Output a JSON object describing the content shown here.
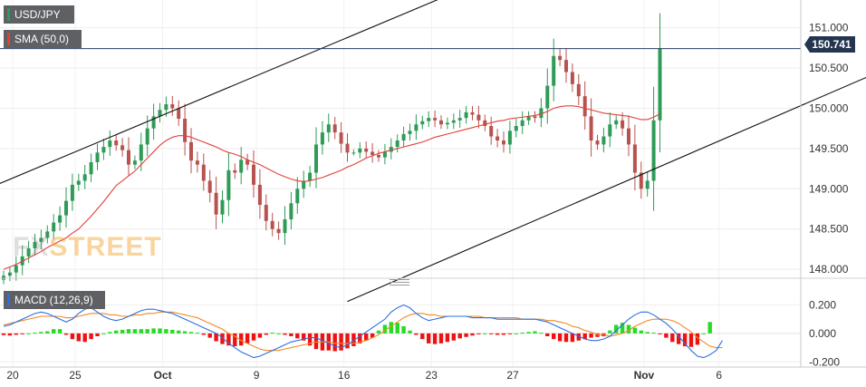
{
  "chart_data": [
    {
      "type": "candlestick",
      "symbol": "USD/JPY",
      "indicator": "SMA (50,0)",
      "current_price": "150.741",
      "current_price_value": 150.741,
      "y_ticks": [
        "151.000",
        "150.500",
        "150.000",
        "149.500",
        "149.000",
        "148.500",
        "148.000"
      ],
      "y_tick_values": [
        151.0,
        150.5,
        150.0,
        149.5,
        149.0,
        148.5,
        148.0
      ],
      "ylim": [
        147.9,
        151.3
      ],
      "x_ticks": [
        "20",
        "25",
        "Oct",
        "9",
        "16",
        "23",
        "27",
        "Nov",
        "6"
      ],
      "x_tick_index": [
        0,
        10,
        24,
        39,
        53,
        67,
        80,
        101,
        113
      ],
      "grid": true,
      "closes": [
        147.92,
        147.96,
        148.05,
        148.16,
        148.26,
        148.34,
        148.39,
        148.47,
        148.58,
        148.67,
        148.85,
        149.05,
        149.1,
        149.18,
        149.33,
        149.45,
        149.52,
        149.6,
        149.54,
        149.48,
        149.3,
        149.35,
        149.55,
        149.75,
        149.9,
        149.98,
        150.05,
        150.0,
        149.87,
        149.58,
        149.35,
        149.3,
        149.1,
        148.95,
        148.68,
        148.86,
        149.23,
        149.2,
        149.36,
        149.3,
        149.05,
        148.8,
        148.6,
        148.5,
        148.45,
        148.62,
        148.82,
        149.0,
        149.1,
        149.2,
        149.55,
        149.7,
        149.8,
        149.7,
        149.56,
        149.45,
        149.45,
        149.5,
        149.46,
        149.42,
        149.39,
        149.46,
        149.52,
        149.6,
        149.68,
        149.72,
        149.8,
        149.84,
        149.88,
        149.85,
        149.8,
        149.82,
        149.85,
        149.88,
        149.95,
        149.92,
        149.85,
        149.78,
        149.65,
        149.6,
        149.55,
        149.72,
        149.78,
        149.85,
        149.9,
        149.88,
        150.0,
        150.28,
        150.65,
        150.6,
        150.45,
        150.3,
        150.15,
        149.9,
        149.6,
        149.55,
        149.65,
        149.8,
        149.85,
        149.75,
        149.55,
        149.2,
        149.0,
        149.1,
        149.85,
        150.741
      ],
      "sma": [
        148.0,
        148.03,
        148.06,
        148.1,
        148.14,
        148.18,
        148.22,
        148.27,
        148.31,
        148.35,
        148.39,
        148.45,
        148.5,
        148.58,
        148.66,
        148.75,
        148.84,
        148.94,
        149.04,
        149.1,
        149.16,
        149.22,
        149.3,
        149.38,
        149.46,
        149.54,
        149.6,
        149.64,
        149.66,
        149.66,
        149.64,
        149.61,
        149.58,
        149.55,
        149.52,
        149.48,
        149.45,
        149.43,
        149.4,
        149.36,
        149.33,
        149.3,
        149.26,
        149.22,
        149.18,
        149.15,
        149.12,
        149.1,
        149.09,
        149.1,
        149.12,
        149.14,
        149.17,
        149.2,
        149.23,
        149.27,
        149.3,
        149.34,
        149.38,
        149.41,
        149.44,
        149.46,
        149.48,
        149.5,
        149.52,
        149.54,
        149.56,
        149.58,
        149.61,
        149.64,
        149.66,
        149.68,
        149.7,
        149.72,
        149.74,
        149.76,
        149.78,
        149.8,
        149.82,
        149.84,
        149.85,
        149.87,
        149.88,
        149.89,
        149.9,
        149.91,
        149.93,
        149.96,
        150.0,
        150.02,
        150.03,
        150.03,
        150.02,
        150.0,
        149.98,
        149.96,
        149.94,
        149.93,
        149.92,
        149.91,
        149.9,
        149.88,
        149.86,
        149.86,
        149.89,
        149.93
      ],
      "trendlines": [
        {
          "from": [
            -2,
            149.02
          ],
          "to": [
            71,
            151.4
          ]
        },
        {
          "from": [
            55,
            147.6
          ],
          "to": [
            140,
            150.45
          ]
        }
      ]
    },
    {
      "type": "macd",
      "indicator": "MACD (12,26,9)",
      "y_ticks": [
        "0.200",
        "0.000",
        "-0.200"
      ],
      "y_tick_values": [
        0.2,
        0.0,
        -0.2
      ],
      "ylim": [
        -0.23,
        0.33
      ],
      "histogram": [
        -0.012,
        -0.015,
        -0.01,
        -0.005,
        0.0,
        0.005,
        0.01,
        0.015,
        0.03,
        0.03,
        -0.01,
        -0.04,
        -0.055,
        -0.06,
        -0.04,
        -0.02,
        0.0,
        0.01,
        0.02,
        0.025,
        0.03,
        0.03,
        0.03,
        0.03,
        0.035,
        0.035,
        0.03,
        0.025,
        0.02,
        0.015,
        0.01,
        0.005,
        -0.01,
        -0.03,
        -0.055,
        -0.075,
        -0.085,
        -0.09,
        -0.085,
        -0.07,
        -0.05,
        -0.03,
        -0.01,
        0.005,
        0.0,
        -0.01,
        -0.02,
        -0.035,
        -0.05,
        -0.085,
        -0.11,
        -0.12,
        -0.12,
        -0.125,
        -0.12,
        -0.105,
        -0.09,
        -0.07,
        -0.05,
        -0.03,
        0.02,
        0.06,
        0.08,
        0.075,
        0.05,
        0.02,
        -0.01,
        -0.04,
        -0.07,
        -0.075,
        -0.07,
        -0.06,
        -0.05,
        -0.035,
        -0.025,
        -0.015,
        -0.005,
        0.0,
        -0.005,
        -0.01,
        -0.01,
        -0.005,
        0.0,
        0.005,
        0.01,
        0.015,
        0.005,
        -0.02,
        -0.04,
        -0.055,
        -0.06,
        -0.06,
        -0.05,
        -0.04,
        -0.03,
        -0.025,
        -0.02,
        0.02,
        0.06,
        0.075,
        0.06,
        0.04,
        0.02,
        0.01,
        0.005,
        -0.005,
        -0.03,
        -0.06,
        -0.075,
        -0.09,
        -0.095,
        -0.08,
        0.0,
        0.08
      ],
      "macd": [
        0.05,
        0.06,
        0.08,
        0.1,
        0.12,
        0.14,
        0.15,
        0.14,
        0.12,
        0.1,
        0.08,
        0.1,
        0.14,
        0.17,
        0.18,
        0.15,
        0.12,
        0.1,
        0.09,
        0.1,
        0.12,
        0.14,
        0.16,
        0.17,
        0.17,
        0.16,
        0.15,
        0.14,
        0.12,
        0.1,
        0.08,
        0.06,
        0.04,
        0.02,
        0.0,
        -0.03,
        -0.07,
        -0.1,
        -0.13,
        -0.15,
        -0.17,
        -0.16,
        -0.14,
        -0.12,
        -0.1,
        -0.08,
        -0.06,
        -0.05,
        -0.04,
        -0.03,
        -0.03,
        -0.05,
        -0.07,
        -0.09,
        -0.1,
        -0.08,
        -0.05,
        -0.02,
        0.01,
        0.04,
        0.07,
        0.1,
        0.15,
        0.18,
        0.2,
        0.18,
        0.14,
        0.11,
        0.09,
        0.1,
        0.11,
        0.12,
        0.12,
        0.12,
        0.12,
        0.11,
        0.11,
        0.11,
        0.11,
        0.1,
        0.1,
        0.1,
        0.1,
        0.1,
        0.1,
        0.1,
        0.09,
        0.08,
        0.06,
        0.04,
        0.02,
        0.0,
        -0.02,
        -0.04,
        -0.05,
        -0.05,
        -0.04,
        -0.02,
        0.02,
        0.06,
        0.1,
        0.13,
        0.15,
        0.15,
        0.13,
        0.1,
        0.07,
        0.03,
        -0.02,
        -0.07,
        -0.12,
        -0.16,
        -0.17,
        -0.15,
        -0.12,
        -0.05
      ],
      "signal": [
        0.06,
        0.07,
        0.08,
        0.09,
        0.1,
        0.11,
        0.12,
        0.12,
        0.12,
        0.12,
        0.11,
        0.11,
        0.12,
        0.13,
        0.14,
        0.14,
        0.14,
        0.13,
        0.13,
        0.12,
        0.12,
        0.13,
        0.13,
        0.14,
        0.14,
        0.15,
        0.15,
        0.15,
        0.14,
        0.13,
        0.12,
        0.11,
        0.09,
        0.07,
        0.05,
        0.03,
        0.0,
        -0.02,
        -0.05,
        -0.07,
        -0.09,
        -0.11,
        -0.12,
        -0.12,
        -0.12,
        -0.11,
        -0.1,
        -0.09,
        -0.08,
        -0.07,
        -0.06,
        -0.06,
        -0.06,
        -0.07,
        -0.07,
        -0.07,
        -0.07,
        -0.06,
        -0.05,
        -0.03,
        -0.01,
        0.02,
        0.05,
        0.08,
        0.11,
        0.13,
        0.14,
        0.14,
        0.13,
        0.13,
        0.12,
        0.12,
        0.12,
        0.12,
        0.12,
        0.12,
        0.12,
        0.11,
        0.11,
        0.11,
        0.11,
        0.11,
        0.11,
        0.1,
        0.1,
        0.1,
        0.1,
        0.09,
        0.09,
        0.08,
        0.07,
        0.05,
        0.04,
        0.02,
        0.01,
        -0.01,
        -0.01,
        -0.02,
        -0.01,
        0.0,
        0.02,
        0.05,
        0.07,
        0.09,
        0.1,
        0.1,
        0.1,
        0.09,
        0.07,
        0.04,
        0.01,
        -0.03,
        -0.06,
        -0.09,
        -0.1,
        -0.1
      ]
    }
  ],
  "watermark": {
    "part1": "FX",
    "part2": "STREET"
  },
  "colors": {
    "up": "#2e9b57",
    "down": "#b8524f",
    "sma": "#e0413a",
    "macd": "#2b6fe0",
    "signal": "#f08a24",
    "hist_up": "#22dd22",
    "hist_down": "#ee1111",
    "trendline": "#111111",
    "price_line": "#2a3d63"
  }
}
